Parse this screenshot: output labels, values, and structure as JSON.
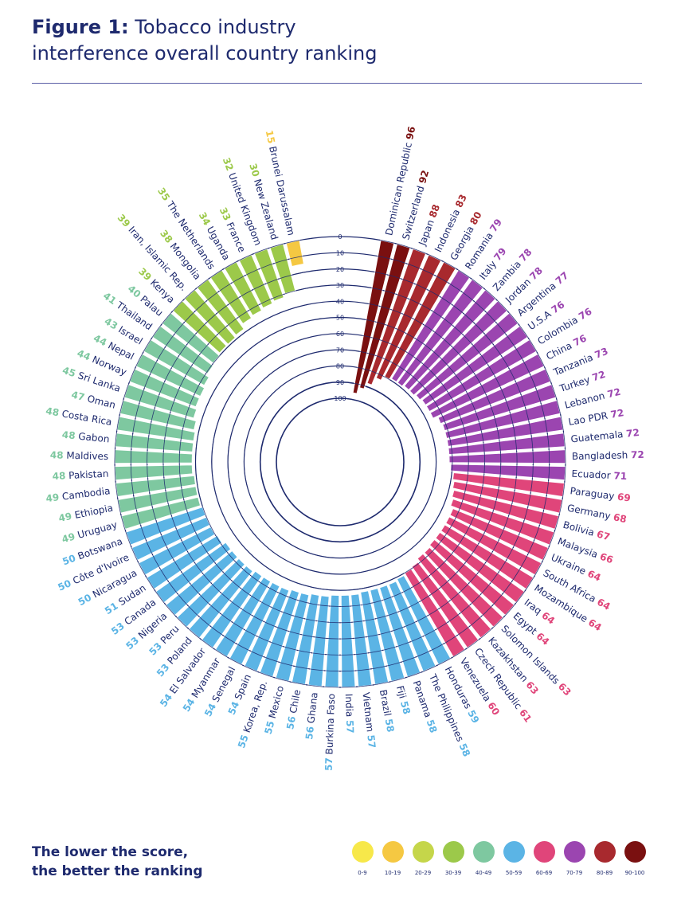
{
  "header": {
    "figure_label": "Figure 1:",
    "title_line1": "Tobacco industry",
    "title_line2": "interference overall country ranking"
  },
  "note": {
    "line1": "The lower the score,",
    "line2": "the better the ranking"
  },
  "legend": [
    {
      "label": "0-9",
      "color": "#f7e84a"
    },
    {
      "label": "10-19",
      "color": "#f5c842"
    },
    {
      "label": "20-29",
      "color": "#c5d64a"
    },
    {
      "label": "30-39",
      "color": "#9cc94a"
    },
    {
      "label": "40-49",
      "color": "#7ec8a0"
    },
    {
      "label": "50-59",
      "color": "#5bb4e5"
    },
    {
      "label": "60-69",
      "color": "#e0457a"
    },
    {
      "label": "70-79",
      "color": "#9b45b0"
    },
    {
      "label": "80-89",
      "color": "#a8292e"
    },
    {
      "label": "90-100",
      "color": "#7a1010"
    }
  ],
  "chart_data": {
    "type": "bar",
    "subtype": "radial",
    "title": "Tobacco industry interference overall country ranking",
    "ylim": [
      0,
      100
    ],
    "ring_ticks": [
      "0",
      "10",
      "20",
      "30",
      "40",
      "50",
      "60",
      "70",
      "80",
      "90",
      "100"
    ],
    "categories": [
      "Dominican Republic",
      "Switzerland",
      "Japan",
      "Indonesia",
      "Georgia",
      "Romania",
      "Italy",
      "Zambia",
      "Jordan",
      "Argentina",
      "U.S.A",
      "Colombia",
      "China",
      "Tanzania",
      "Turkey",
      "Lebanon",
      "Lao PDR",
      "Guatemala",
      "Bangladesh",
      "Ecuador",
      "Paraguay",
      "Germany",
      "Bolivia",
      "Malaysia",
      "Ukraine",
      "South Africa",
      "Mozambique",
      "Iraq",
      "Egypt",
      "Solomon Islands",
      "Kazakhstan",
      "Czech Republic",
      "Venezuela",
      "Honduras",
      "The Philippines",
      "Panama",
      "Fiji",
      "Brazil",
      "Vietnam",
      "India",
      "Burkina Faso",
      "Ghana",
      "Chile",
      "Mexico",
      "Korea, Rep.",
      "Spain",
      "Senegal",
      "Myanmar",
      "El Salvador",
      "Poland",
      "Peru",
      "Nigeria",
      "Canada",
      "Sudan",
      "Nicaragua",
      "Côte d'Ivoire",
      "Botswana",
      "Uruguay",
      "Ethiopia",
      "Cambodia",
      "Pakistan",
      "Maldives",
      "Gabon",
      "Costa Rica",
      "Oman",
      "Sri Lanka",
      "Norway",
      "Nepal",
      "Israel",
      "Thailand",
      "Palau",
      "Kenya",
      "Iran, Islamic Rep.",
      "Mongolia",
      "The Netherlands",
      "Uganda",
      "France",
      "United Kingdom",
      "New Zealand",
      "Brunei Darussalam"
    ],
    "values": [
      96,
      92,
      88,
      83,
      80,
      79,
      79,
      78,
      78,
      77,
      76,
      76,
      76,
      73,
      72,
      72,
      72,
      72,
      72,
      71,
      69,
      68,
      67,
      66,
      64,
      64,
      64,
      64,
      64,
      63,
      63,
      61,
      60,
      59,
      58,
      58,
      58,
      58,
      57,
      57,
      57,
      56,
      56,
      55,
      55,
      54,
      54,
      54,
      54,
      53,
      53,
      53,
      53,
      51,
      50,
      50,
      50,
      49,
      49,
      49,
      48,
      48,
      48,
      48,
      47,
      45,
      44,
      44,
      43,
      41,
      40,
      39,
      39,
      38,
      35,
      34,
      33,
      32,
      30,
      15
    ]
  }
}
